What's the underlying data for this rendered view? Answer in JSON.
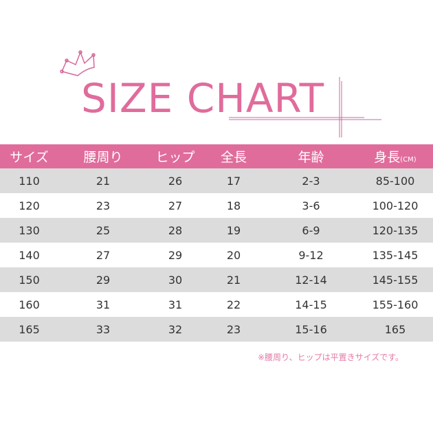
{
  "title": "SIZE CHART",
  "accent": "#e06c9c",
  "headers": [
    "サイズ",
    "腰周り",
    "ヒップ",
    "全長",
    "年齢",
    "身長"
  ],
  "height_unit": "(CM)",
  "rows": [
    [
      "110",
      "21",
      "26",
      "17",
      "2-3",
      "85-100"
    ],
    [
      "120",
      "23",
      "27",
      "18",
      "3-6",
      "100-120"
    ],
    [
      "130",
      "25",
      "28",
      "19",
      "6-9",
      "120-135"
    ],
    [
      "140",
      "27",
      "29",
      "20",
      "9-12",
      "135-145"
    ],
    [
      "150",
      "29",
      "30",
      "21",
      "12-14",
      "145-155"
    ],
    [
      "160",
      "31",
      "31",
      "22",
      "14-15",
      "155-160"
    ],
    [
      "165",
      "33",
      "32",
      "23",
      "15-16",
      "165"
    ]
  ],
  "note": "※腰周り、ヒップは平置きサイズです。"
}
